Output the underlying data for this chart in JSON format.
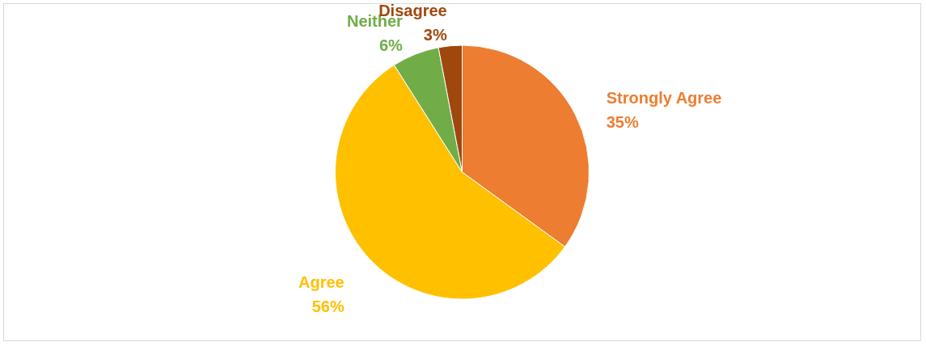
{
  "chart_data": {
    "type": "pie",
    "categories": [
      "Strongly Agree",
      "Agree",
      "Neither",
      "Disagree"
    ],
    "values": [
      35,
      56,
      6,
      3
    ],
    "colors": [
      "#ed7d31",
      "#ffc000",
      "#70ad47",
      "#9e480e"
    ],
    "value_labels": [
      "35%",
      "56%",
      "6%",
      "3%"
    ]
  }
}
